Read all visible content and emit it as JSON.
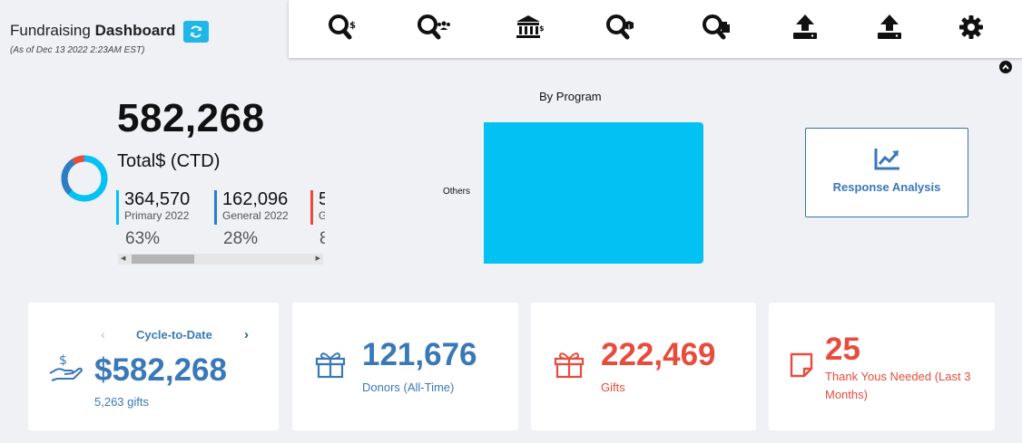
{
  "header": {
    "title_prefix": "Fundraising",
    "title_bold": "Dashboard",
    "subtitle": "(As of Dec 13 2022 2:23AM EST)",
    "refresh_icon": "refresh-icon"
  },
  "toolbar": {
    "tools": [
      {
        "icon": "search-dollar-icon"
      },
      {
        "icon": "search-users-icon"
      },
      {
        "icon": "bank-icon"
      },
      {
        "icon": "search-box-icon"
      },
      {
        "icon": "search-document-icon"
      },
      {
        "icon": "upload-icon"
      },
      {
        "icon": "upload-icon"
      },
      {
        "icon": "gear-icon"
      }
    ]
  },
  "total": {
    "value": "582,268",
    "label": "Total$ (CTD)",
    "breakdown": [
      {
        "value": "364,570",
        "name": "Primary 2022",
        "pct": "63%",
        "color": "#03c1f3"
      },
      {
        "value": "162,096",
        "name": "General 2022",
        "pct": "28%",
        "color": "#2e7dc4"
      },
      {
        "value": "5",
        "name": "G",
        "pct": "8",
        "color": "#e74c3c"
      }
    ]
  },
  "chart_data": {
    "type": "bar",
    "orientation": "horizontal",
    "title": "By Program",
    "categories": [
      "Others"
    ],
    "values": [
      582268
    ],
    "color": "#03c1f3",
    "grid": false
  },
  "response": {
    "label": "Response Analysis",
    "icon": "trend-chart-icon"
  },
  "cards": {
    "cycle": {
      "label": "Cycle-to-Date",
      "value": "$582,268",
      "sub": "5,263 gifts",
      "prev": "‹",
      "next": "›"
    },
    "donors": {
      "value": "121,676",
      "label": "Donors (All-Time)"
    },
    "gifts": {
      "value": "222,469",
      "label": "Gifts"
    },
    "thanks": {
      "value": "25",
      "label": "Thank Yous Needed (Last 3 Months)"
    }
  }
}
